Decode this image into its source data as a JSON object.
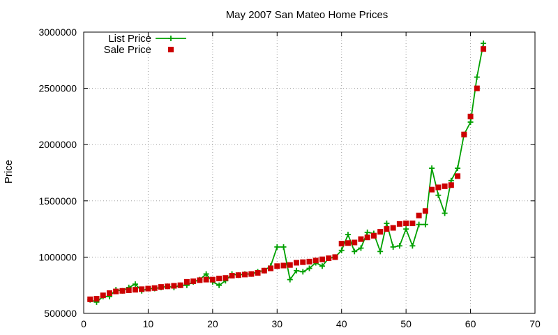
{
  "chart_data": {
    "type": "line",
    "title": "May 2007 San Mateo Home Prices",
    "xlabel": "",
    "ylabel": "Price",
    "xlim": [
      0,
      70
    ],
    "ylim": [
      500000,
      3000000
    ],
    "xticks": [
      0,
      10,
      20,
      30,
      40,
      50,
      60,
      70
    ],
    "yticks": [
      500000,
      1000000,
      1500000,
      2000000,
      2500000,
      3000000
    ],
    "grid": true,
    "legend_position": "top-left",
    "series": [
      {
        "name": "List Price",
        "style": "line-with-plus-markers",
        "color": "#00a000",
        "x": [
          1,
          2,
          3,
          4,
          5,
          6,
          7,
          8,
          9,
          10,
          11,
          12,
          13,
          14,
          15,
          16,
          17,
          18,
          19,
          20,
          21,
          22,
          23,
          24,
          25,
          26,
          27,
          28,
          29,
          30,
          31,
          32,
          33,
          34,
          35,
          36,
          37,
          38,
          39,
          40,
          41,
          42,
          43,
          44,
          45,
          46,
          47,
          48,
          49,
          50,
          51,
          52,
          53,
          54,
          55,
          56,
          57,
          58,
          59,
          60,
          61,
          62
        ],
        "y": [
          620000,
          600000,
          650000,
          650000,
          710000,
          700000,
          730000,
          760000,
          700000,
          720000,
          720000,
          730000,
          740000,
          730000,
          750000,
          750000,
          780000,
          800000,
          850000,
          780000,
          750000,
          790000,
          850000,
          840000,
          850000,
          850000,
          870000,
          880000,
          920000,
          1090000,
          1090000,
          800000,
          880000,
          870000,
          900000,
          950000,
          920000,
          990000,
          1000000,
          1060000,
          1200000,
          1050000,
          1080000,
          1220000,
          1210000,
          1050000,
          1300000,
          1090000,
          1100000,
          1250000,
          1100000,
          1290000,
          1290000,
          1790000,
          1550000,
          1390000,
          1680000,
          1790000,
          2090000,
          2200000,
          2600000,
          2900000
        ]
      },
      {
        "name": "Sale Price",
        "style": "square-markers",
        "color": "#cc0000",
        "x": [
          1,
          2,
          3,
          4,
          5,
          6,
          7,
          8,
          9,
          10,
          11,
          12,
          13,
          14,
          15,
          16,
          17,
          18,
          19,
          20,
          21,
          22,
          23,
          24,
          25,
          26,
          27,
          28,
          29,
          30,
          31,
          32,
          33,
          34,
          35,
          36,
          37,
          38,
          39,
          40,
          41,
          42,
          43,
          44,
          45,
          46,
          47,
          48,
          49,
          50,
          51,
          52,
          53,
          54,
          55,
          56,
          57,
          58,
          59,
          60,
          61,
          62
        ],
        "y": [
          625000,
          630000,
          660000,
          680000,
          695000,
          700000,
          705000,
          710000,
          715000,
          720000,
          725000,
          735000,
          740000,
          745000,
          750000,
          780000,
          785000,
          795000,
          800000,
          800000,
          810000,
          815000,
          835000,
          840000,
          845000,
          850000,
          860000,
          880000,
          900000,
          920000,
          925000,
          930000,
          950000,
          955000,
          960000,
          970000,
          980000,
          990000,
          1000000,
          1120000,
          1125000,
          1130000,
          1160000,
          1175000,
          1190000,
          1225000,
          1250000,
          1260000,
          1295000,
          1300000,
          1300000,
          1370000,
          1410000,
          1600000,
          1620000,
          1630000,
          1640000,
          1720000,
          2090000,
          2250000,
          2500000,
          2850000
        ]
      }
    ]
  }
}
